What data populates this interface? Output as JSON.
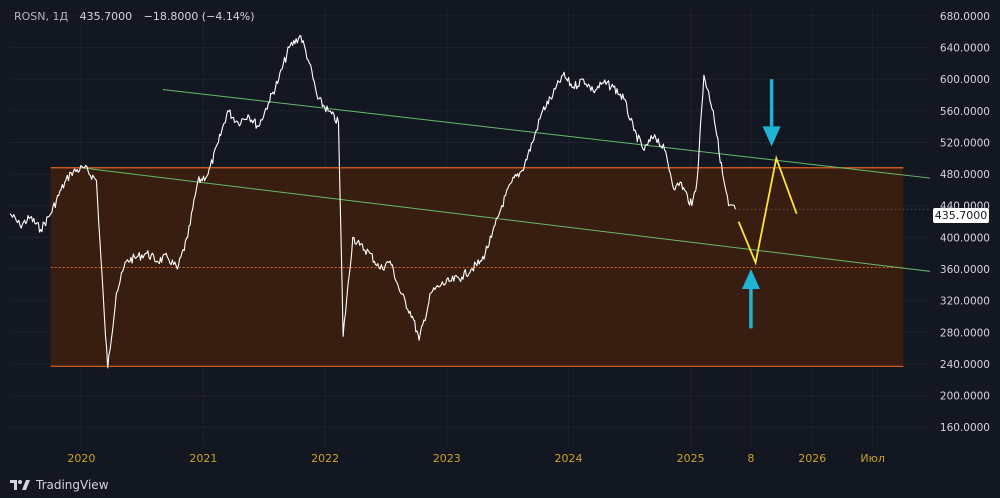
{
  "header": {
    "symbol": "ROSN, 1Д",
    "last": "435.7000",
    "change": "−18.8000 (−4.14%)"
  },
  "brand": "TradingView",
  "last_price_tag": "435.7000",
  "colors": {
    "background": "#131722",
    "price_line": "#ffffff",
    "trend_lines": "#66bb6a",
    "range_fill": "#3a1f10",
    "range_border": "#e0651f",
    "forecast": "#fbe33a",
    "arrows": "#1fb3d6",
    "x_labels": "#c9a227"
  },
  "chart_data": {
    "type": "line",
    "title": "",
    "xlabel": "",
    "ylabel": "",
    "ylim": [
      135,
      690
    ],
    "x_range": [
      "2019-06-01",
      "2026-12-20"
    ],
    "y_ticks": [
      "680.0000",
      "640.0000",
      "600.0000",
      "560.0000",
      "520.0000",
      "480.0000",
      "440.0000",
      "400.0000",
      "360.0000",
      "320.0000",
      "280.0000",
      "240.0000",
      "200.0000",
      "160.0000"
    ],
    "x_ticks": [
      {
        "date": "2020-01-01",
        "label": "2020"
      },
      {
        "date": "2021-01-01",
        "label": "2021"
      },
      {
        "date": "2022-01-01",
        "label": "2022"
      },
      {
        "date": "2023-01-01",
        "label": "2023"
      },
      {
        "date": "2024-01-01",
        "label": "2024"
      },
      {
        "date": "2025-01-01",
        "label": "2025"
      },
      {
        "date": "2025-07-01",
        "label": "8"
      },
      {
        "date": "2026-01-01",
        "label": "2026"
      },
      {
        "date": "2026-07-01",
        "label": "Июл"
      }
    ],
    "series": [
      {
        "x": [
          "2019-06-01",
          "2019-07-01",
          "2019-08-01",
          "2019-09-01",
          "2019-10-01",
          "2019-11-01",
          "2019-12-01",
          "2020-01-10",
          "2020-02-15",
          "2020-03-10",
          "2020-03-20",
          "2020-04-15",
          "2020-05-15",
          "2020-06-15",
          "2020-07-15",
          "2020-08-15",
          "2020-09-15",
          "2020-10-15",
          "2020-11-15",
          "2020-12-15",
          "2021-01-15",
          "2021-02-15",
          "2021-03-15",
          "2021-04-15",
          "2021-05-15",
          "2021-06-15",
          "2021-07-15",
          "2021-08-15",
          "2021-09-15",
          "2021-10-20",
          "2021-11-15",
          "2021-12-10",
          "2022-01-10",
          "2022-02-10",
          "2022-02-24",
          "2022-03-25",
          "2022-04-15",
          "2022-05-15",
          "2022-06-15",
          "2022-07-15",
          "2022-08-15",
          "2022-09-20",
          "2022-10-10",
          "2022-11-15",
          "2022-12-15",
          "2023-01-15",
          "2023-02-15",
          "2023-03-15",
          "2023-04-15",
          "2023-05-15",
          "2023-06-15",
          "2023-07-15",
          "2023-08-15",
          "2023-09-15",
          "2023-10-15",
          "2023-11-15",
          "2023-12-15",
          "2024-01-15",
          "2024-02-15",
          "2024-03-15",
          "2024-04-15",
          "2024-05-15",
          "2024-06-15",
          "2024-07-15",
          "2024-08-15",
          "2024-09-15",
          "2024-10-15",
          "2024-11-15",
          "2024-12-01",
          "2025-01-05",
          "2025-01-20",
          "2025-02-10",
          "2025-03-10",
          "2025-04-07",
          "2025-04-25",
          "2025-05-15"
        ],
        "y": [
          430,
          415,
          425,
          410,
          430,
          460,
          482,
          488,
          472,
          300,
          235,
          330,
          370,
          375,
          380,
          370,
          375,
          360,
          400,
          470,
          480,
          520,
          560,
          545,
          555,
          540,
          570,
          600,
          640,
          655,
          620,
          575,
          560,
          545,
          275,
          400,
          390,
          380,
          360,
          370,
          330,
          300,
          270,
          330,
          340,
          345,
          350,
          360,
          370,
          400,
          440,
          470,
          485,
          520,
          560,
          580,
          605,
          590,
          600,
          585,
          595,
          590,
          575,
          535,
          510,
          530,
          510,
          460,
          470,
          440,
          470,
          605,
          560,
          480,
          440,
          435.7
        ]
      }
    ],
    "annotations": [
      {
        "type": "trendline",
        "points": [
          [
            "2020-09-01",
            587
          ],
          [
            "2026-12-20",
            475
          ]
        ]
      },
      {
        "type": "trendline",
        "points": [
          [
            "2020-01-01",
            488
          ],
          [
            "2026-12-20",
            357
          ]
        ]
      },
      {
        "type": "range",
        "from": 488,
        "to": 237
      },
      {
        "type": "midline",
        "value": 362
      },
      {
        "type": "forecast",
        "points": [
          [
            "2025-05-25",
            420
          ],
          [
            "2025-07-15",
            368
          ],
          [
            "2025-09-15",
            500
          ],
          [
            "2025-11-15",
            430
          ]
        ]
      },
      {
        "type": "arrow",
        "direction": "down",
        "x": "2025-09-01",
        "y_from": 600,
        "y_to": 515
      },
      {
        "type": "arrow",
        "direction": "up",
        "x": "2025-07-01",
        "y_from": 285,
        "y_to": 360
      }
    ]
  }
}
